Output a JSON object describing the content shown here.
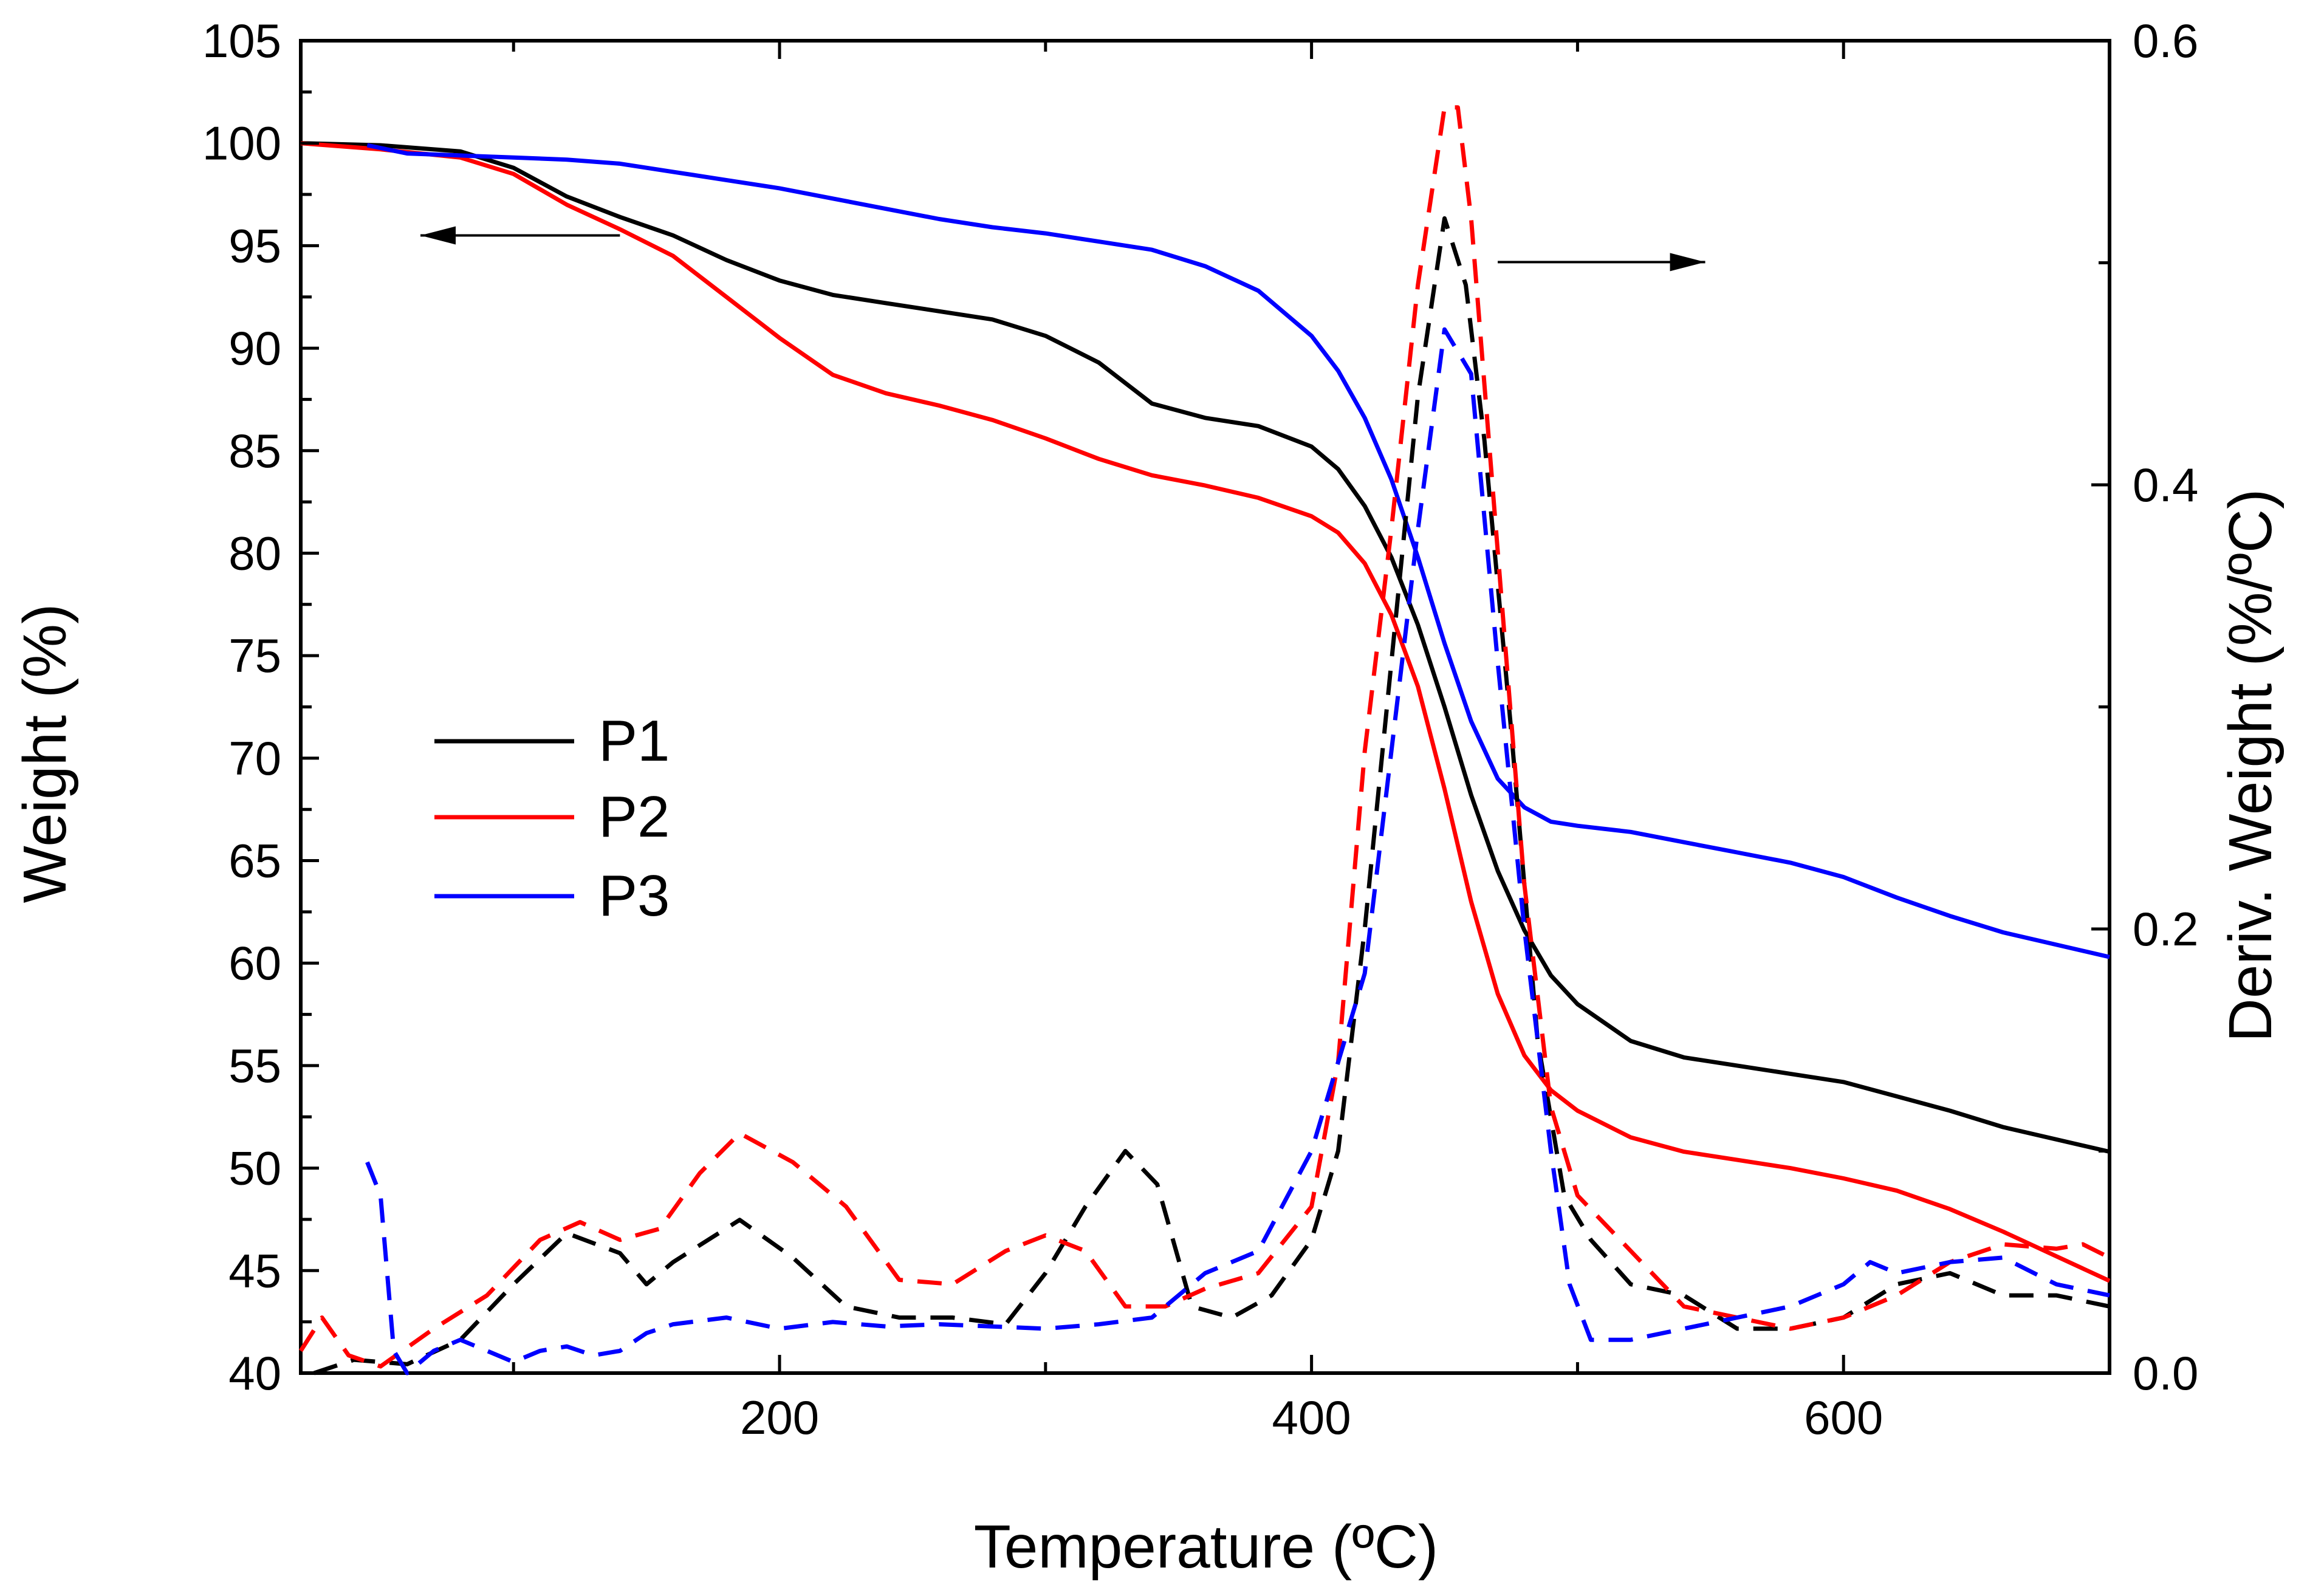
{
  "chart_data": {
    "type": "line",
    "title": "",
    "xlabel": "Temperature (ºC)",
    "ylabel": "Weight (%)",
    "y2label": "Deriv. Weight (%/ºC)",
    "xlim": [
      20,
      700
    ],
    "ylim": [
      40,
      105
    ],
    "y2lim": [
      0.0,
      0.6
    ],
    "x_ticks": [
      200,
      400,
      600
    ],
    "y_ticks": [
      40,
      45,
      50,
      55,
      60,
      65,
      70,
      75,
      80,
      85,
      90,
      95,
      100,
      105
    ],
    "y2_ticks": [
      "0.0",
      "0.2",
      "0.4",
      "0.6"
    ],
    "legend": [
      {
        "name": "P1",
        "color": "#000000"
      },
      {
        "name": "P2",
        "color": "#ff0000"
      },
      {
        "name": "P3",
        "color": "#0000ff"
      }
    ],
    "annotations": [
      {
        "label": "arrow-left",
        "meaning": "solid curves read on left axis (Weight)",
        "from": [
          140,
          95.5
        ],
        "to": [
          65,
          95.5
        ],
        "axis": "left"
      },
      {
        "label": "arrow-right",
        "meaning": "dashed curves read on right axis (Deriv. Weight)",
        "from": [
          470,
          94.2
        ],
        "to": [
          548,
          94.2
        ],
        "axis": "left"
      }
    ],
    "series": [
      {
        "name": "P1",
        "kind": "weight",
        "axis": "left",
        "color": "#000000",
        "dash": false,
        "x": [
          20,
          50,
          80,
          100,
          120,
          140,
          160,
          180,
          200,
          220,
          240,
          260,
          280,
          300,
          320,
          340,
          360,
          380,
          400,
          410,
          420,
          430,
          440,
          450,
          460,
          470,
          480,
          490,
          500,
          520,
          540,
          560,
          580,
          600,
          620,
          640,
          660,
          680,
          700
        ],
        "y": [
          100,
          99.9,
          99.6,
          98.8,
          97.4,
          96.4,
          95.5,
          94.3,
          93.3,
          92.6,
          92.2,
          91.8,
          91.4,
          90.6,
          89.3,
          87.3,
          86.6,
          86.2,
          85.2,
          84.1,
          82.3,
          79.8,
          76.5,
          72.5,
          68.2,
          64.5,
          61.6,
          59.4,
          58.0,
          56.2,
          55.4,
          55.0,
          54.6,
          54.2,
          53.5,
          52.8,
          52.0,
          51.4,
          50.8
        ]
      },
      {
        "name": "P2",
        "kind": "weight",
        "axis": "left",
        "color": "#ff0000",
        "dash": false,
        "x": [
          20,
          50,
          80,
          100,
          120,
          140,
          160,
          180,
          200,
          220,
          240,
          260,
          280,
          300,
          320,
          340,
          360,
          380,
          400,
          410,
          420,
          430,
          440,
          450,
          460,
          470,
          480,
          490,
          500,
          520,
          540,
          560,
          580,
          600,
          620,
          640,
          660,
          680,
          700
        ],
        "y": [
          100,
          99.7,
          99.3,
          98.5,
          97.0,
          95.8,
          94.5,
          92.5,
          90.5,
          88.7,
          87.8,
          87.2,
          86.5,
          85.6,
          84.6,
          83.8,
          83.3,
          82.7,
          81.8,
          81.0,
          79.5,
          77.0,
          73.5,
          68.5,
          63.0,
          58.5,
          55.5,
          53.8,
          52.8,
          51.5,
          50.8,
          50.4,
          50.0,
          49.5,
          48.9,
          48.0,
          46.9,
          45.7,
          44.5
        ]
      },
      {
        "name": "P3",
        "kind": "weight",
        "axis": "left",
        "color": "#0000ff",
        "dash": false,
        "x": [
          45,
          60,
          80,
          100,
          120,
          140,
          160,
          180,
          200,
          220,
          240,
          260,
          280,
          300,
          320,
          340,
          360,
          380,
          400,
          410,
          420,
          430,
          440,
          450,
          460,
          470,
          480,
          490,
          500,
          520,
          540,
          560,
          580,
          600,
          620,
          640,
          660,
          680,
          700
        ],
        "y": [
          99.9,
          99.5,
          99.4,
          99.3,
          99.2,
          99.0,
          98.6,
          98.2,
          97.8,
          97.3,
          96.8,
          96.3,
          95.9,
          95.6,
          95.2,
          94.8,
          94.0,
          92.8,
          90.6,
          88.9,
          86.6,
          83.6,
          79.8,
          75.6,
          71.8,
          69.0,
          67.6,
          66.9,
          66.7,
          66.4,
          65.9,
          65.4,
          64.9,
          64.2,
          63.2,
          62.3,
          61.5,
          60.9,
          60.3
        ]
      },
      {
        "name": "P1",
        "kind": "derivative",
        "axis": "right",
        "color": "#000000",
        "dash": true,
        "x": [
          25,
          40,
          60,
          80,
          100,
          120,
          140,
          150,
          160,
          185,
          205,
          225,
          245,
          265,
          285,
          300,
          315,
          330,
          342,
          355,
          370,
          385,
          400,
          410,
          420,
          430,
          440,
          450,
          458,
          465,
          475,
          485,
          495,
          505,
          520,
          540,
          560,
          580,
          600,
          620,
          640,
          660,
          680,
          700
        ],
        "y": [
          0.0,
          0.006,
          0.004,
          0.015,
          0.04,
          0.063,
          0.054,
          0.04,
          0.05,
          0.069,
          0.052,
          0.03,
          0.025,
          0.025,
          0.022,
          0.045,
          0.075,
          0.1,
          0.085,
          0.03,
          0.025,
          0.035,
          0.06,
          0.1,
          0.2,
          0.32,
          0.44,
          0.52,
          0.49,
          0.42,
          0.29,
          0.15,
          0.08,
          0.06,
          0.04,
          0.035,
          0.02,
          0.02,
          0.025,
          0.04,
          0.045,
          0.035,
          0.035,
          0.03
        ]
      },
      {
        "name": "P2",
        "kind": "derivative",
        "axis": "right",
        "color": "#ff0000",
        "dash": true,
        "x": [
          20,
          28,
          38,
          50,
          70,
          90,
          110,
          125,
          140,
          155,
          170,
          185,
          205,
          225,
          245,
          265,
          285,
          300,
          315,
          330,
          345,
          360,
          380,
          400,
          410,
          420,
          430,
          440,
          450,
          455,
          460,
          470,
          480,
          490,
          500,
          520,
          540,
          560,
          580,
          600,
          620,
          640,
          660,
          680,
          690,
          700
        ],
        "y": [
          0.01,
          0.025,
          0.008,
          0.003,
          0.02,
          0.035,
          0.06,
          0.068,
          0.06,
          0.065,
          0.09,
          0.108,
          0.095,
          0.075,
          0.042,
          0.04,
          0.055,
          0.062,
          0.055,
          0.03,
          0.03,
          0.038,
          0.045,
          0.075,
          0.14,
          0.28,
          0.38,
          0.49,
          0.57,
          0.57,
          0.52,
          0.37,
          0.22,
          0.12,
          0.08,
          0.055,
          0.03,
          0.025,
          0.02,
          0.025,
          0.035,
          0.05,
          0.058,
          0.056,
          0.058,
          0.052
        ]
      },
      {
        "name": "P3",
        "kind": "derivative",
        "axis": "right",
        "color": "#0000ff",
        "dash": true,
        "x": [
          45,
          50,
          55,
          60,
          65,
          70,
          80,
          90,
          100,
          110,
          120,
          130,
          140,
          150,
          160,
          180,
          200,
          220,
          240,
          260,
          280,
          300,
          320,
          340,
          360,
          380,
          400,
          410,
          420,
          430,
          440,
          450,
          460,
          470,
          480,
          490,
          497,
          505,
          520,
          540,
          560,
          580,
          600,
          610,
          620,
          640,
          660,
          680,
          700
        ],
        "y": [
          0.095,
          0.08,
          0.01,
          0.0,
          0.005,
          0.01,
          0.015,
          0.01,
          0.005,
          0.01,
          0.012,
          0.008,
          0.01,
          0.018,
          0.022,
          0.025,
          0.02,
          0.023,
          0.021,
          0.022,
          0.021,
          0.02,
          0.022,
          0.025,
          0.045,
          0.055,
          0.1,
          0.14,
          0.18,
          0.28,
          0.38,
          0.47,
          0.45,
          0.32,
          0.2,
          0.1,
          0.04,
          0.015,
          0.015,
          0.02,
          0.025,
          0.03,
          0.04,
          0.05,
          0.045,
          0.05,
          0.052,
          0.04,
          0.035
        ]
      }
    ]
  }
}
